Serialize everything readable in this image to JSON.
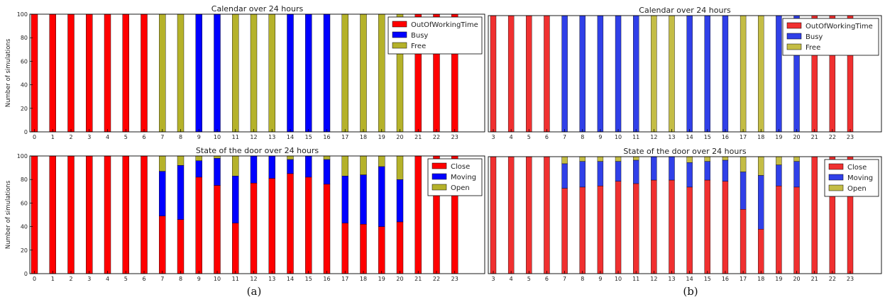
{
  "chart_data": [
    {
      "id": "a-top",
      "panel": "(a)",
      "type": "bar",
      "stacked": true,
      "title": "Calendar over 24 hours",
      "ylabel": "Number of simulations",
      "xlabel": "",
      "ylim": [
        0,
        100
      ],
      "yticks": [
        0,
        20,
        40,
        60,
        80,
        100
      ],
      "categories": [
        "0",
        "1",
        "2",
        "3",
        "4",
        "5",
        "6",
        "7",
        "8",
        "9",
        "10",
        "11",
        "12",
        "13",
        "14",
        "15",
        "16",
        "17",
        "18",
        "19",
        "20",
        "21",
        "22",
        "23"
      ],
      "legend_position": "top-right",
      "series": [
        {
          "name": "OutOfWorkingTime",
          "color": "#ff0000",
          "values": [
            100,
            100,
            100,
            100,
            100,
            100,
            100,
            0,
            0,
            0,
            0,
            0,
            0,
            0,
            0,
            0,
            0,
            0,
            0,
            0,
            0,
            100,
            100,
            100
          ]
        },
        {
          "name": "Busy",
          "color": "#0000ff",
          "values": [
            0,
            0,
            0,
            0,
            0,
            0,
            0,
            0,
            0,
            100,
            100,
            0,
            0,
            0,
            100,
            100,
            100,
            0,
            0,
            0,
            0,
            0,
            0,
            0
          ]
        },
        {
          "name": "Free",
          "color": "#b5b22a",
          "values": [
            0,
            0,
            0,
            0,
            0,
            0,
            0,
            100,
            100,
            0,
            0,
            100,
            100,
            100,
            0,
            0,
            0,
            100,
            100,
            100,
            100,
            0,
            0,
            0
          ]
        }
      ]
    },
    {
      "id": "b-top",
      "panel": "(b)",
      "type": "bar",
      "stacked": true,
      "title": "Calendar over 24 hours",
      "ylabel": "",
      "xlabel": "",
      "ylim": [
        0,
        100
      ],
      "yticks": [],
      "categories": [
        "3",
        "4",
        "5",
        "6",
        "7",
        "8",
        "9",
        "10",
        "11",
        "12",
        "13",
        "14",
        "15",
        "16",
        "17",
        "18",
        "19",
        "20",
        "21",
        "22",
        "23"
      ],
      "legend_position": "top-right",
      "series": [
        {
          "name": "OutOfWorkingTime",
          "color": "#f03030",
          "values": [
            100,
            100,
            100,
            100,
            0,
            0,
            0,
            0,
            0,
            0,
            0,
            0,
            0,
            0,
            0,
            0,
            0,
            0,
            100,
            100,
            100
          ]
        },
        {
          "name": "Busy",
          "color": "#3040e8",
          "values": [
            0,
            0,
            0,
            0,
            100,
            100,
            100,
            100,
            100,
            0,
            0,
            100,
            100,
            100,
            0,
            0,
            100,
            100,
            0,
            0,
            0
          ]
        },
        {
          "name": "Free",
          "color": "#c4bd45",
          "values": [
            0,
            0,
            0,
            0,
            0,
            0,
            0,
            0,
            0,
            100,
            100,
            0,
            0,
            0,
            100,
            100,
            0,
            0,
            0,
            0,
            0
          ]
        }
      ]
    },
    {
      "id": "a-bottom",
      "panel": "(a)",
      "type": "bar",
      "stacked": true,
      "title": "State of the door over 24 hours",
      "ylabel": "Number of simulations",
      "xlabel": "",
      "ylim": [
        0,
        100
      ],
      "yticks": [
        0,
        20,
        40,
        60,
        80,
        100
      ],
      "categories": [
        "0",
        "1",
        "2",
        "3",
        "4",
        "5",
        "6",
        "7",
        "8",
        "9",
        "10",
        "11",
        "12",
        "13",
        "14",
        "15",
        "16",
        "17",
        "18",
        "19",
        "20",
        "21",
        "22",
        "23"
      ],
      "legend_position": "top-right",
      "series": [
        {
          "name": "Close",
          "color": "#ff0000",
          "values": [
            100,
            100,
            100,
            100,
            100,
            100,
            100,
            49,
            46,
            82,
            75,
            43,
            77,
            81,
            85,
            82,
            76,
            43,
            42,
            40,
            44,
            100,
            100,
            100
          ]
        },
        {
          "name": "Moving",
          "color": "#0000ff",
          "values": [
            0,
            0,
            0,
            0,
            0,
            0,
            0,
            38,
            46,
            14,
            23,
            40,
            23,
            19,
            12,
            18,
            21,
            40,
            42,
            51,
            36,
            0,
            0,
            0
          ]
        },
        {
          "name": "Open",
          "color": "#b5b22a",
          "values": [
            0,
            0,
            0,
            0,
            0,
            0,
            0,
            13,
            8,
            4,
            2,
            17,
            0,
            0,
            3,
            0,
            3,
            17,
            16,
            9,
            20,
            0,
            0,
            0
          ]
        }
      ]
    },
    {
      "id": "b-bottom",
      "panel": "(b)",
      "type": "bar",
      "stacked": true,
      "title": "State of the door over 24 hours",
      "ylabel": "",
      "xlabel": "",
      "ylim": [
        0,
        100
      ],
      "yticks": [],
      "categories": [
        "3",
        "4",
        "5",
        "6",
        "7",
        "8",
        "9",
        "10",
        "11",
        "12",
        "13",
        "14",
        "15",
        "16",
        "17",
        "18",
        "19",
        "20",
        "21",
        "22",
        "23"
      ],
      "legend_position": "top-right",
      "series": [
        {
          "name": "Close",
          "color": "#f03030",
          "values": [
            100,
            100,
            100,
            100,
            73,
            74,
            75,
            79,
            77,
            80,
            80,
            74,
            80,
            79,
            55,
            38,
            75,
            74,
            100,
            100,
            100
          ]
        },
        {
          "name": "Moving",
          "color": "#3040e8",
          "values": [
            0,
            0,
            0,
            0,
            21,
            22,
            21,
            17,
            20,
            20,
            20,
            21,
            16,
            18,
            32,
            46,
            18,
            22,
            0,
            0,
            0
          ]
        },
        {
          "name": "Open",
          "color": "#c4bd45",
          "values": [
            0,
            0,
            0,
            0,
            6,
            4,
            4,
            4,
            3,
            0,
            0,
            5,
            4,
            3,
            13,
            16,
            7,
            4,
            0,
            0,
            0
          ]
        }
      ]
    }
  ],
  "captions": {
    "a": "(a)",
    "b": "(b)"
  }
}
